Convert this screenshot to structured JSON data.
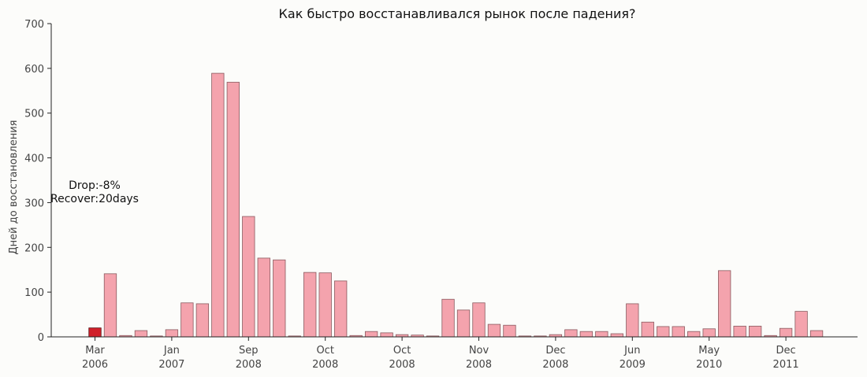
{
  "chart_data": {
    "type": "bar",
    "title": "Как быстро восстанавливался рынок после падения?",
    "xlabel": "",
    "ylabel": "Дней до восстановления",
    "ylim": [
      0,
      700
    ],
    "yticks": [
      0,
      100,
      200,
      300,
      400,
      500,
      600,
      700
    ],
    "values": [
      20,
      141,
      3,
      14,
      2,
      16,
      76,
      74,
      589,
      569,
      269,
      176,
      172,
      2,
      144,
      143,
      125,
      3,
      12,
      9,
      5,
      4,
      2,
      84,
      60,
      76,
      28,
      26,
      2,
      2,
      5,
      16,
      12,
      12,
      7,
      74,
      33,
      23,
      23,
      12,
      18,
      148,
      24,
      24,
      3,
      19,
      57,
      14
    ],
    "highlight_index": 0,
    "highlight_color": "#d0202a",
    "bar_color": "#f4a3ad",
    "xtick_labels": [
      {
        "index": 0,
        "line1": "Mar",
        "line2": "2006"
      },
      {
        "index": 5,
        "line1": "Jan",
        "line2": "2007"
      },
      {
        "index": 10,
        "line1": "Sep",
        "line2": "2008"
      },
      {
        "index": 15,
        "line1": "Oct",
        "line2": "2008"
      },
      {
        "index": 20,
        "line1": "Oct",
        "line2": "2008"
      },
      {
        "index": 25,
        "line1": "Nov",
        "line2": "2008"
      },
      {
        "index": 30,
        "line1": "Dec",
        "line2": "2008"
      },
      {
        "index": 35,
        "line1": "Jun",
        "line2": "2009"
      },
      {
        "index": 40,
        "line1": "May",
        "line2": "2010"
      },
      {
        "index": 45,
        "line1": "Dec",
        "line2": "2011"
      }
    ],
    "annotation": {
      "line1": "Drop:-8%",
      "line2": "Recover:20days"
    },
    "grid": false
  }
}
